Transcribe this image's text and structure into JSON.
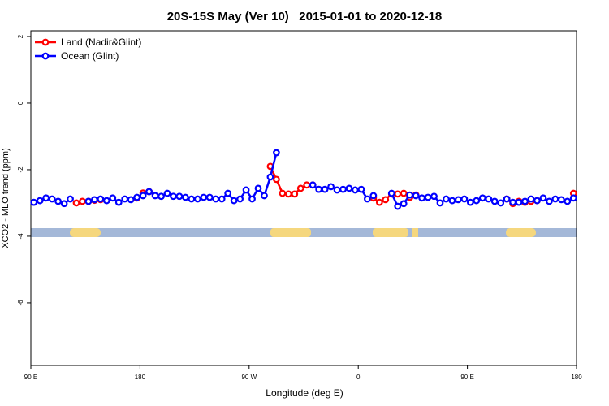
{
  "chart_data": {
    "type": "line",
    "title": "20S-15S May (Ver 10)   2015-01-01 to 2020-12-18",
    "xlabel": "Longitude (deg E)",
    "ylabel": "XCO2 - MLO trend (ppm)",
    "xlim": [
      90,
      540
    ],
    "ylim": [
      -7.88,
      2.17
    ],
    "xticks": [
      {
        "value": 90,
        "label": "90 E"
      },
      180,
      {
        "value": 270,
        "label": "90 W"
      },
      {
        "value": 360,
        "label": "0"
      },
      {
        "value": 450,
        "label": "90 E"
      },
      {
        "value": 540,
        "label": "180"
      }
    ],
    "yticks": [
      2,
      0,
      -2,
      -4,
      -6
    ],
    "legend": "top-left",
    "x": [
      92.5,
      97.5,
      102.5,
      107.5,
      112.5,
      117.5,
      122.5,
      127.5,
      132.5,
      137.5,
      142.5,
      147.5,
      152.5,
      157.5,
      162.5,
      167.5,
      172.5,
      177.5,
      182.5,
      187.5,
      192.5,
      197.5,
      202.5,
      207.5,
      212.5,
      217.5,
      222.5,
      227.5,
      232.5,
      237.5,
      242.5,
      247.5,
      252.5,
      257.5,
      262.5,
      267.5,
      272.5,
      277.5,
      282.5,
      287.5,
      292.5,
      297.5,
      302.5,
      307.5,
      312.5,
      317.5,
      322.5,
      327.5,
      332.5,
      337.5,
      342.5,
      347.5,
      352.5,
      357.5,
      362.5,
      367.5,
      372.5,
      377.5,
      382.5,
      387.5,
      392.5,
      397.5,
      402.5,
      407.5,
      412.5,
      417.5,
      422.5,
      427.5,
      432.5,
      437.5,
      442.5,
      447.5,
      452.5,
      457.5,
      462.5,
      467.5,
      472.5,
      477.5,
      482.5,
      487.5,
      492.5,
      497.5,
      502.5,
      507.5,
      512.5,
      517.5,
      522.5,
      527.5,
      532.5,
      537.5
    ],
    "series": [
      {
        "name": "Land (Nadir&Glint)",
        "color": "#ff0000",
        "values": [
          null,
          null,
          null,
          null,
          null,
          null,
          null,
          -3.0,
          -2.95,
          -2.95,
          -2.92,
          -2.9,
          null,
          null,
          null,
          null,
          null,
          -2.85,
          -2.7,
          -2.66,
          null,
          null,
          null,
          null,
          null,
          null,
          null,
          null,
          null,
          null,
          null,
          null,
          null,
          null,
          null,
          null,
          null,
          null,
          null,
          -1.9,
          -2.29,
          -2.71,
          -2.73,
          -2.73,
          -2.56,
          -2.46,
          -2.46,
          null,
          null,
          null,
          null,
          null,
          null,
          null,
          null,
          null,
          -2.85,
          -2.98,
          -2.9,
          -2.73,
          -2.73,
          -2.71,
          -2.83,
          -2.76,
          null,
          null,
          null,
          null,
          null,
          null,
          null,
          null,
          null,
          null,
          null,
          null,
          null,
          null,
          -2.88,
          -3.02,
          -2.95,
          -2.98,
          -2.95,
          -2.93,
          null,
          null,
          null,
          null,
          null,
          -2.71
        ]
      },
      {
        "name": "Ocean (Glint)",
        "color": "#0000ff",
        "values": [
          -2.98,
          -2.93,
          -2.85,
          -2.88,
          -2.95,
          -3.02,
          -2.88,
          null,
          null,
          -2.95,
          -2.9,
          -2.88,
          -2.93,
          -2.85,
          -2.98,
          -2.88,
          -2.9,
          -2.83,
          -2.78,
          -2.66,
          -2.78,
          -2.8,
          -2.71,
          -2.8,
          -2.8,
          -2.83,
          -2.88,
          -2.88,
          -2.83,
          -2.83,
          -2.88,
          -2.88,
          -2.71,
          -2.93,
          -2.88,
          -2.61,
          -2.88,
          -2.56,
          -2.78,
          -2.22,
          -1.49,
          null,
          null,
          null,
          null,
          null,
          -2.46,
          -2.59,
          -2.59,
          -2.51,
          -2.61,
          -2.59,
          -2.56,
          -2.61,
          -2.59,
          -2.88,
          -2.78,
          null,
          null,
          -2.71,
          -3.1,
          -3.02,
          -2.76,
          -2.78,
          -2.85,
          -2.83,
          -2.8,
          -3.0,
          -2.88,
          -2.93,
          -2.9,
          -2.88,
          -2.98,
          -2.93,
          -2.85,
          -2.88,
          -2.95,
          -3.0,
          -2.88,
          -2.98,
          -2.98,
          -2.95,
          -2.88,
          -2.93,
          -2.85,
          -2.95,
          -2.88,
          -2.9,
          -2.95,
          -2.85
        ]
      }
    ]
  }
}
